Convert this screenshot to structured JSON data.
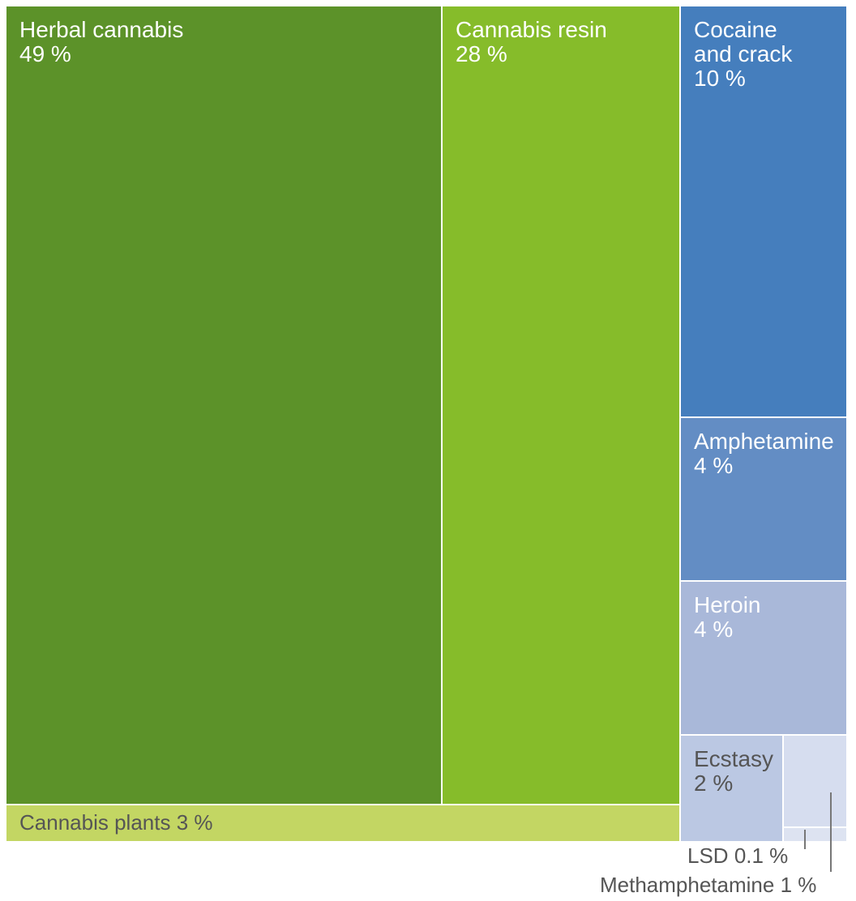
{
  "chart_data": {
    "type": "treemap",
    "items": [
      {
        "name": "Herbal cannabis",
        "value_label": "49 %",
        "value": 49,
        "color": "#5c9229",
        "text_color": "#ffffff"
      },
      {
        "name": "Cannabis resin",
        "value_label": "28 %",
        "value": 28,
        "color": "#86bc2a",
        "text_color": "#ffffff"
      },
      {
        "name": "Cocaine\nand crack",
        "value_label": "10 %",
        "value": 10,
        "color": "#457ebd",
        "text_color": "#ffffff"
      },
      {
        "name": "Amphetamine",
        "value_label": "4 %",
        "value": 4,
        "color": "#638dc4",
        "text_color": "#ffffff"
      },
      {
        "name": "Heroin",
        "value_label": "4 %",
        "value": 4,
        "color": "#a9b8d9",
        "text_color": "#ffffff"
      },
      {
        "name": "Ecstasy",
        "value_label": "2 %",
        "value": 2,
        "color": "#bbc8e3",
        "text_color": "#555555"
      },
      {
        "name": "Cannabis plants",
        "value_label": "3 %",
        "value": 3,
        "color": "#c3d663",
        "text_color": "#555555"
      },
      {
        "name": "Methamphetamine",
        "value_label": "1 %",
        "value": 1,
        "color": "#d6ddef",
        "text_color": "#555555"
      },
      {
        "name": "LSD",
        "value_label": "0.1 %",
        "value": 0.1,
        "color": "#dde3f1",
        "text_color": "#555555"
      }
    ]
  }
}
